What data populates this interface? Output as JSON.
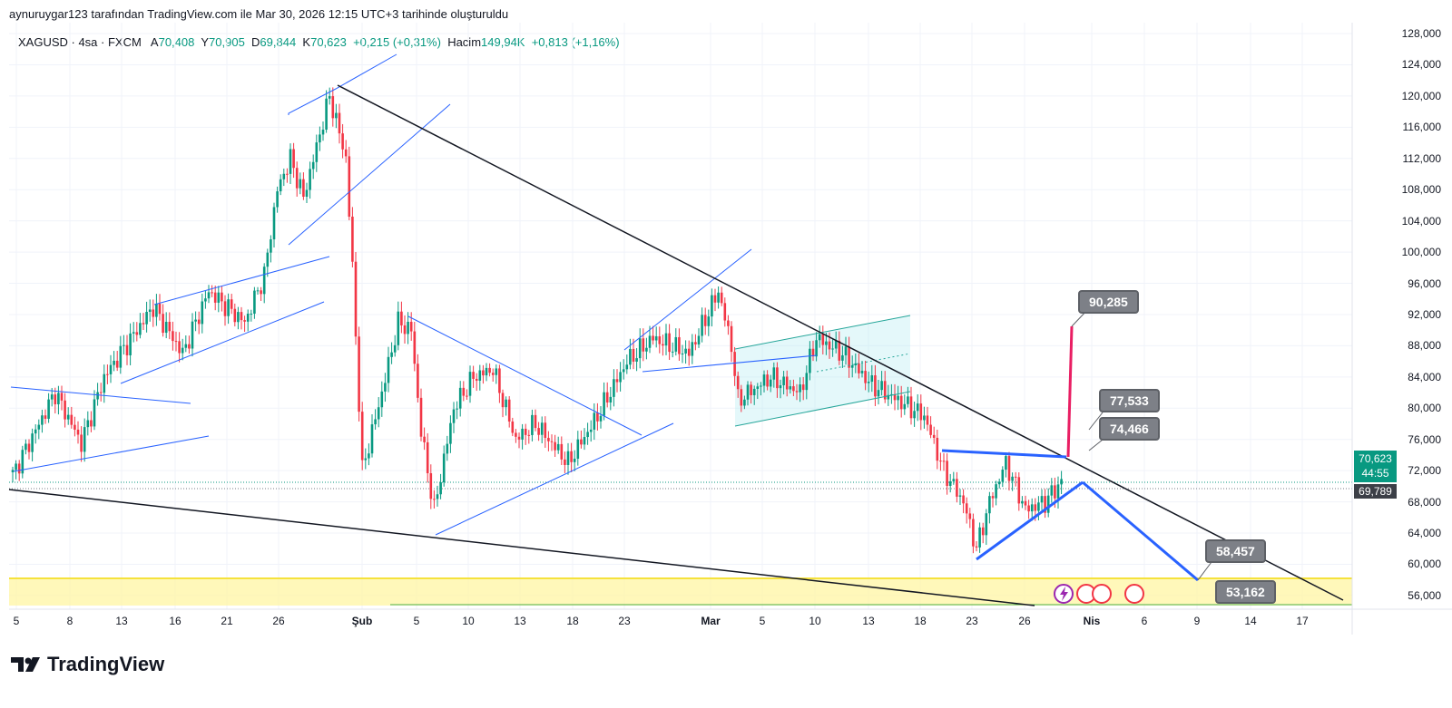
{
  "caption": "aynuruygar123 tarafından TradingView.com ile Mar 30, 2026 12:15 UTC+3 tarihinde oluşturuldu",
  "legend": {
    "symbol": "XAGUSD · 4sa · FXCM",
    "o_label": "A",
    "o": "70,408",
    "h_label": "Y",
    "h": "70,905",
    "l_label": "D",
    "l": "69,844",
    "c_label": "K",
    "c": "70,623",
    "change": "+0,215 (+0,31%)",
    "vol_label": "Hacim",
    "vol": "149,94K",
    "vol_change": "+0,813 (+1,16%)"
  },
  "current_price": {
    "value": "70,623",
    "countdown": "44:55",
    "color": "#089981"
  },
  "secondary_price": {
    "value": "69,789"
  },
  "callouts": [
    "90,285",
    "77,533",
    "74,466",
    "58,457",
    "53,162"
  ],
  "brand": "TradingView",
  "colors": {
    "up": "#089981",
    "down": "#f23645",
    "drawing": "#2962ff",
    "zone": "#fff59d"
  },
  "chart_data": {
    "type": "candlestick",
    "title": "XAGUSD 4sa FXCM",
    "y_ticks": [
      "128,000",
      "124,000",
      "120,000",
      "116,000",
      "112,000",
      "108,000",
      "104,000",
      "100,000",
      "96,000",
      "92,000",
      "88,000",
      "84,000",
      "80,000",
      "76,000",
      "72,000",
      "68,000",
      "64,000",
      "60,000",
      "56,000"
    ],
    "ylim": [
      56000,
      128000
    ],
    "x_ticks": [
      "5",
      "8",
      "13",
      "16",
      "21",
      "26",
      "Şub",
      "5",
      "10",
      "13",
      "18",
      "23",
      "Mar",
      "5",
      "10",
      "13",
      "18",
      "23",
      "26",
      "Nis",
      "6",
      "9",
      "14",
      "17"
    ],
    "close_path_bar_price": [
      [
        0,
        71.5
      ],
      [
        13,
        82
      ],
      [
        21,
        75.5
      ],
      [
        28,
        84
      ],
      [
        43,
        93
      ],
      [
        52,
        87
      ],
      [
        60,
        95
      ],
      [
        71,
        91
      ],
      [
        77,
        97
      ],
      [
        81,
        108
      ],
      [
        85,
        112
      ],
      [
        89,
        107
      ],
      [
        97,
        120
      ],
      [
        102,
        112
      ],
      [
        104,
        98
      ],
      [
        107,
        72
      ],
      [
        113,
        82
      ],
      [
        118,
        91
      ],
      [
        122,
        90
      ],
      [
        125,
        77
      ],
      [
        129,
        67
      ],
      [
        135,
        80
      ],
      [
        141,
        84
      ],
      [
        147,
        85
      ],
      [
        154,
        76
      ],
      [
        160,
        78
      ],
      [
        170,
        73
      ],
      [
        179,
        79
      ],
      [
        188,
        86
      ],
      [
        196,
        89
      ],
      [
        207,
        87
      ],
      [
        216,
        95
      ],
      [
        220,
        88
      ],
      [
        222,
        81
      ],
      [
        232,
        84
      ],
      [
        241,
        82
      ],
      [
        246,
        89
      ],
      [
        254,
        87
      ],
      [
        263,
        83
      ],
      [
        271,
        81
      ],
      [
        279,
        79
      ],
      [
        285,
        72
      ],
      [
        291,
        68
      ],
      [
        295,
        62
      ],
      [
        299,
        68
      ],
      [
        304,
        73
      ],
      [
        310,
        67
      ],
      [
        316,
        68
      ],
      [
        321,
        70.6
      ]
    ]
  }
}
